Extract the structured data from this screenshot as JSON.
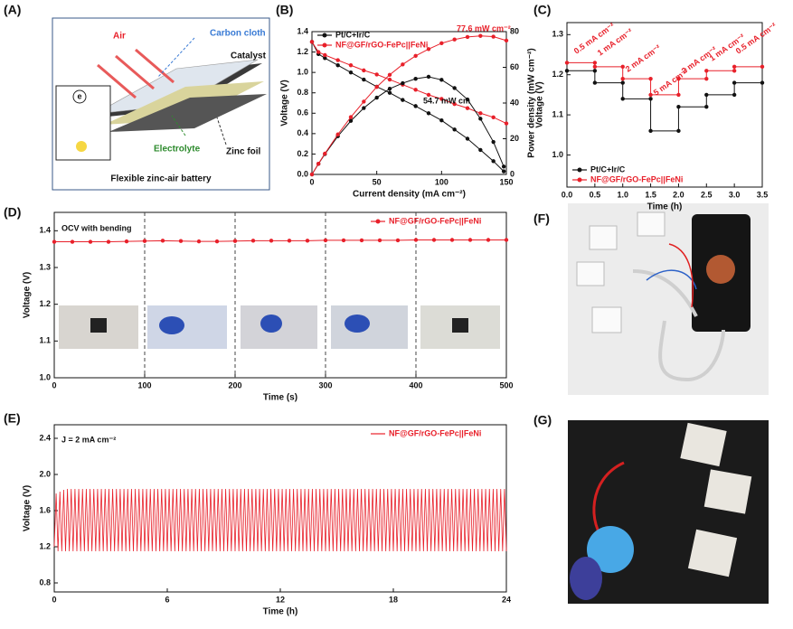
{
  "panels": {
    "labels": [
      "(A)",
      "(B)",
      "(C)",
      "(D)",
      "(E)",
      "(F)",
      "(G)"
    ]
  },
  "diagram": {
    "air": "Air",
    "carbon_cloth": "Carbon cloth",
    "catalyst": "Catalyst",
    "electrolyte": "Electrolyte",
    "zinc_foil": "Zinc foil",
    "caption": "Flexible zinc-air battery",
    "electron": "e"
  },
  "chart_data": [
    {
      "type": "line",
      "markers": true,
      "legend": "upper left",
      "xlabel": "Current density (mA cm⁻²)",
      "ylabel": "Voltage (V)",
      "y2label": "Power density (mW cm⁻²)",
      "xlim": [
        0,
        150
      ],
      "xticks": [
        0,
        50,
        100,
        150
      ],
      "ylim": [
        0,
        1.4
      ],
      "yticks": [
        {
          "value": 0,
          "label": "0.0"
        },
        0.2,
        0.4,
        0.6,
        0.8,
        {
          "value": 1,
          "label": "1.0"
        },
        1.2,
        1.4
      ],
      "y2lim": [
        0,
        80
      ],
      "y2ticks": [
        0,
        20,
        40,
        60,
        80
      ],
      "annotations": [
        {
          "text": "77.6 mW cm⁻²",
          "color": "#e8202a"
        },
        {
          "text": "54.7 mW cm",
          "color": "#111111"
        }
      ],
      "series": [
        {
          "name": "Pt/C+Ir/C",
          "color": "#111111",
          "x": [
            0,
            5,
            10,
            20,
            30,
            40,
            50,
            60,
            70,
            80,
            90,
            100,
            110,
            120,
            130,
            140,
            148
          ],
          "values": [
            1.3,
            1.18,
            1.14,
            1.07,
            1.0,
            0.93,
            0.86,
            0.8,
            0.73,
            0.67,
            0.6,
            0.53,
            0.44,
            0.35,
            0.24,
            0.13,
            0.03
          ]
        },
        {
          "name": "NF@GF/rGO-FePc||FeNi",
          "color": "#e8202a",
          "x": [
            0,
            5,
            10,
            20,
            30,
            40,
            50,
            60,
            70,
            80,
            90,
            100,
            110,
            120,
            130,
            140,
            150
          ],
          "values": [
            1.3,
            1.2,
            1.17,
            1.12,
            1.07,
            1.02,
            0.98,
            0.93,
            0.88,
            0.83,
            0.78,
            0.74,
            0.69,
            0.65,
            0.6,
            0.56,
            0.5
          ]
        },
        {
          "name": "Pt/C+Ir/C",
          "color": "#111111",
          "axis": "y2",
          "x": [
            0,
            5,
            10,
            20,
            30,
            40,
            50,
            60,
            70,
            80,
            90,
            100,
            110,
            120,
            130,
            140,
            148
          ],
          "values": [
            0,
            5.9,
            11.4,
            21.4,
            30,
            37.2,
            43,
            48,
            51.1,
            53.6,
            54.7,
            53,
            48.4,
            42,
            31.2,
            18.2,
            4.4
          ]
        },
        {
          "name": "NF@GF/rGO-FePc||FeNi",
          "color": "#e8202a",
          "axis": "y2",
          "x": [
            0,
            5,
            10,
            20,
            30,
            40,
            50,
            60,
            70,
            80,
            90,
            100,
            110,
            120,
            130,
            140,
            150
          ],
          "values": [
            0,
            6,
            11.7,
            22.4,
            32.1,
            40.8,
            49,
            55.8,
            61.6,
            66.4,
            70.2,
            73.5,
            75.6,
            77,
            77.6,
            77.2,
            75
          ]
        }
      ]
    },
    {
      "type": "line",
      "markers": true,
      "legend": "lower left",
      "xlabel": "Time (h)",
      "ylabel": "Voltage (V)",
      "xlim": [
        0,
        3.5
      ],
      "xticks": [
        {
          "value": 0,
          "label": "0.0"
        },
        0.5,
        {
          "value": 1,
          "label": "1.0"
        },
        1.5,
        {
          "value": 2,
          "label": "2.0"
        },
        2.5,
        {
          "value": 3,
          "label": "3.0"
        },
        3.5
      ],
      "ylim": [
        0.92,
        1.33
      ],
      "yticks": [
        {
          "value": 1,
          "label": "1.0"
        },
        1.1,
        1.2,
        1.3
      ],
      "annotations": [
        {
          "text": "0.5 mA cm⁻²",
          "color": "#e8202a"
        },
        {
          "text": "1 mA cm⁻²",
          "color": "#e8202a"
        },
        {
          "text": "2 mA cm⁻²",
          "color": "#e8202a"
        },
        {
          "text": "5 mA cm⁻²",
          "color": "#e8202a"
        },
        {
          "text": "2 mA cm⁻²",
          "color": "#e8202a"
        },
        {
          "text": "1 mA cm⁻²",
          "color": "#e8202a"
        },
        {
          "text": "0.5 mA cm⁻²",
          "color": "#e8202a"
        }
      ],
      "series": [
        {
          "name": "Pt/C+Ir/C",
          "color": "#111111",
          "x": [
            0,
            0.5,
            0.5,
            1,
            1,
            1.5,
            1.5,
            2,
            2,
            2.5,
            2.5,
            3,
            3,
            3.5
          ],
          "values": [
            1.21,
            1.21,
            1.18,
            1.18,
            1.14,
            1.14,
            1.06,
            1.06,
            1.12,
            1.12,
            1.15,
            1.15,
            1.18,
            1.18
          ]
        },
        {
          "name": "NF@GF/rGO-FePc||FeNi",
          "color": "#e8202a",
          "x": [
            0,
            0.5,
            0.5,
            1,
            1,
            1.5,
            1.5,
            2,
            2,
            2.5,
            2.5,
            3,
            3,
            3.5
          ],
          "values": [
            1.23,
            1.23,
            1.22,
            1.22,
            1.19,
            1.19,
            1.15,
            1.15,
            1.19,
            1.19,
            1.21,
            1.21,
            1.22,
            1.22
          ]
        }
      ]
    },
    {
      "type": "line",
      "markers": true,
      "legend": "upper right",
      "xlabel": "Time (s)",
      "ylabel": "Voltage (V)",
      "xlim": [
        0,
        500
      ],
      "xticks": [
        0,
        100,
        200,
        300,
        400,
        500
      ],
      "ylim": [
        1.0,
        1.45
      ],
      "yticks": [
        {
          "value": 1,
          "label": "1.0"
        },
        1.1,
        1.2,
        1.3,
        1.4
      ],
      "dividers": [
        100,
        200,
        300,
        400
      ],
      "annotations": [
        {
          "text": "OCV with bending",
          "color": "#111111"
        }
      ],
      "series": [
        {
          "name": "NF@GF/rGO-FePc||FeNi",
          "color": "#e8202a",
          "x": [
            0,
            20,
            40,
            60,
            80,
            100,
            120,
            140,
            160,
            180,
            200,
            220,
            240,
            260,
            280,
            300,
            320,
            340,
            360,
            380,
            400,
            420,
            440,
            460,
            480,
            500
          ],
          "values": [
            1.37,
            1.37,
            1.37,
            1.37,
            1.371,
            1.372,
            1.373,
            1.372,
            1.371,
            1.371,
            1.372,
            1.373,
            1.373,
            1.373,
            1.373,
            1.374,
            1.374,
            1.374,
            1.374,
            1.374,
            1.375,
            1.375,
            1.375,
            1.375,
            1.375,
            1.375
          ]
        }
      ]
    },
    {
      "type": "line",
      "markers": false,
      "legend": "upper right",
      "xlabel": "Time (h)",
      "ylabel": "Voltage (V)",
      "xlim": [
        0,
        24
      ],
      "xticks": [
        0,
        6,
        12,
        18,
        24
      ],
      "ylim": [
        0.7,
        2.55
      ],
      "yticks": [
        0.8,
        1.2,
        1.6,
        {
          "value": 2,
          "label": "2.0"
        },
        2.4
      ],
      "annotations": [
        {
          "text": "J = 2 mA cm⁻²",
          "color": "#111111"
        }
      ],
      "series": [
        {
          "name": "NF@GF/rGO-FePc||FeNi",
          "color": "#e8202a",
          "x": [
            0,
            0.1,
            0.2,
            0.3,
            0.4,
            0.5,
            0.6,
            0.7,
            0.8,
            0.9,
            1,
            1.1,
            1.2,
            1.3,
            1.4,
            1.5,
            1.6,
            1.7,
            1.8,
            1.9,
            2,
            2.1,
            2.2,
            2.3,
            2.4,
            2.5,
            2.6,
            2.7,
            2.8,
            2.9,
            3,
            3.1,
            3.2,
            3.3,
            3.4,
            3.5,
            3.6,
            3.7,
            3.8,
            3.9,
            4,
            4.1,
            4.2,
            4.3,
            4.4,
            4.5,
            4.6,
            4.7,
            4.8,
            4.9,
            5,
            5.1,
            5.2,
            5.3,
            5.4,
            5.5,
            5.6,
            5.7,
            5.8,
            5.9,
            6,
            6.1,
            6.2,
            6.3,
            6.4,
            6.5,
            6.6,
            6.7,
            6.8,
            6.9,
            7,
            7.1,
            7.2,
            7.3,
            7.4,
            7.5,
            7.6,
            7.7,
            7.8,
            7.9,
            8,
            8.1,
            8.2,
            8.3,
            8.4,
            8.5,
            8.6,
            8.7,
            8.8,
            8.9,
            9,
            9.1,
            9.2,
            9.3,
            9.4,
            9.5,
            9.6,
            9.7,
            9.8,
            9.9,
            10,
            10.1,
            10.2,
            10.3,
            10.4,
            10.5,
            10.6,
            10.7,
            10.8,
            10.9,
            11,
            11.1,
            11.2,
            11.3,
            11.4,
            11.5,
            11.6,
            11.7,
            11.8,
            11.9,
            12,
            12.1,
            12.2,
            12.3,
            12.4,
            12.5,
            12.6,
            12.7,
            12.8,
            12.9,
            13,
            13.1,
            13.2,
            13.3,
            13.4,
            13.5,
            13.6,
            13.7,
            13.8,
            13.9,
            14,
            14.1,
            14.2,
            14.3,
            14.4,
            14.5,
            14.6,
            14.7,
            14.8,
            14.9,
            15,
            15.1,
            15.2,
            15.3,
            15.4,
            15.5,
            15.6,
            15.7,
            15.8,
            15.9,
            16,
            16.1,
            16.2,
            16.3,
            16.4,
            16.5,
            16.6,
            16.7,
            16.8,
            16.9,
            17,
            17.1,
            17.2,
            17.3,
            17.4,
            17.5,
            17.6,
            17.7,
            17.8,
            17.9,
            18,
            18.1,
            18.2,
            18.3,
            18.4,
            18.5,
            18.6,
            18.7,
            18.8,
            18.9,
            19,
            19.1,
            19.2,
            19.3,
            19.4,
            19.5,
            19.6,
            19.7,
            19.8,
            19.9,
            20,
            20.1,
            20.2,
            20.3,
            20.4,
            20.5,
            20.6,
            20.7,
            20.8,
            20.9,
            21,
            21.1,
            21.2,
            21.3,
            21.4,
            21.5,
            21.6,
            21.7,
            21.8,
            21.9,
            22,
            22.1,
            22.2,
            22.3,
            22.4,
            22.5,
            22.6,
            22.7,
            22.8,
            22.9,
            23,
            23.1,
            23.2,
            23.3,
            23.4,
            23.5,
            23.6,
            23.7,
            23.8,
            23.9,
            24
          ],
          "values": [
            1.2,
            1.79,
            1.15,
            1.81,
            1.15,
            1.83,
            1.15,
            1.84,
            1.15,
            1.84,
            1.15,
            1.84,
            1.15,
            1.84,
            1.15,
            1.84,
            1.15,
            1.84,
            1.15,
            1.84,
            1.15,
            1.84,
            1.15,
            1.84,
            1.15,
            1.84,
            1.15,
            1.84,
            1.15,
            1.84,
            1.15,
            1.84,
            1.15,
            1.84,
            1.15,
            1.84,
            1.15,
            1.84,
            1.15,
            1.84,
            1.15,
            1.84,
            1.15,
            1.84,
            1.15,
            1.84,
            1.15,
            1.84,
            1.15,
            1.84,
            1.15,
            1.84,
            1.15,
            1.84,
            1.15,
            1.84,
            1.15,
            1.84,
            1.15,
            1.84,
            1.15,
            1.84,
            1.15,
            1.84,
            1.15,
            1.84,
            1.15,
            1.84,
            1.15,
            1.84,
            1.15,
            1.84,
            1.15,
            1.84,
            1.15,
            1.84,
            1.15,
            1.84,
            1.15,
            1.84,
            1.15,
            1.84,
            1.15,
            1.84,
            1.15,
            1.84,
            1.15,
            1.84,
            1.15,
            1.84,
            1.15,
            1.84,
            1.15,
            1.84,
            1.15,
            1.84,
            1.15,
            1.84,
            1.15,
            1.84,
            1.15,
            1.84,
            1.15,
            1.84,
            1.15,
            1.84,
            1.15,
            1.84,
            1.15,
            1.84,
            1.15,
            1.84,
            1.15,
            1.84,
            1.15,
            1.84,
            1.15,
            1.84,
            1.15,
            1.84,
            1.15,
            1.84,
            1.15,
            1.84,
            1.15,
            1.84,
            1.15,
            1.84,
            1.15,
            1.84,
            1.15,
            1.84,
            1.15,
            1.84,
            1.15,
            1.84,
            1.15,
            1.84,
            1.15,
            1.84,
            1.15,
            1.84,
            1.15,
            1.84,
            1.15,
            1.84,
            1.15,
            1.84,
            1.15,
            1.84,
            1.15,
            1.84,
            1.15,
            1.84,
            1.15,
            1.84,
            1.15,
            1.84,
            1.15,
            1.84,
            1.15,
            1.84,
            1.15,
            1.84,
            1.15,
            1.84,
            1.15,
            1.84,
            1.15,
            1.84,
            1.15,
            1.84,
            1.15,
            1.84,
            1.15,
            1.84,
            1.15,
            1.84,
            1.15,
            1.84,
            1.15,
            1.84,
            1.15,
            1.84,
            1.15,
            1.84,
            1.15,
            1.84,
            1.15,
            1.84,
            1.15,
            1.84,
            1.15,
            1.84,
            1.15,
            1.84,
            1.15,
            1.84,
            1.15,
            1.84,
            1.15,
            1.84,
            1.15,
            1.84,
            1.15,
            1.84,
            1.15,
            1.84,
            1.15,
            1.84,
            1.15,
            1.84,
            1.15,
            1.84,
            1.15,
            1.84,
            1.15,
            1.84,
            1.15,
            1.84,
            1.15,
            1.84,
            1.15,
            1.84,
            1.15,
            1.84,
            1.15,
            1.84,
            1.15,
            1.84,
            1.15,
            1.84,
            1.15,
            1.84,
            1.15,
            1.84,
            1.15,
            1.84,
            1.15,
            1.84,
            1.15
          ]
        }
      ]
    }
  ]
}
